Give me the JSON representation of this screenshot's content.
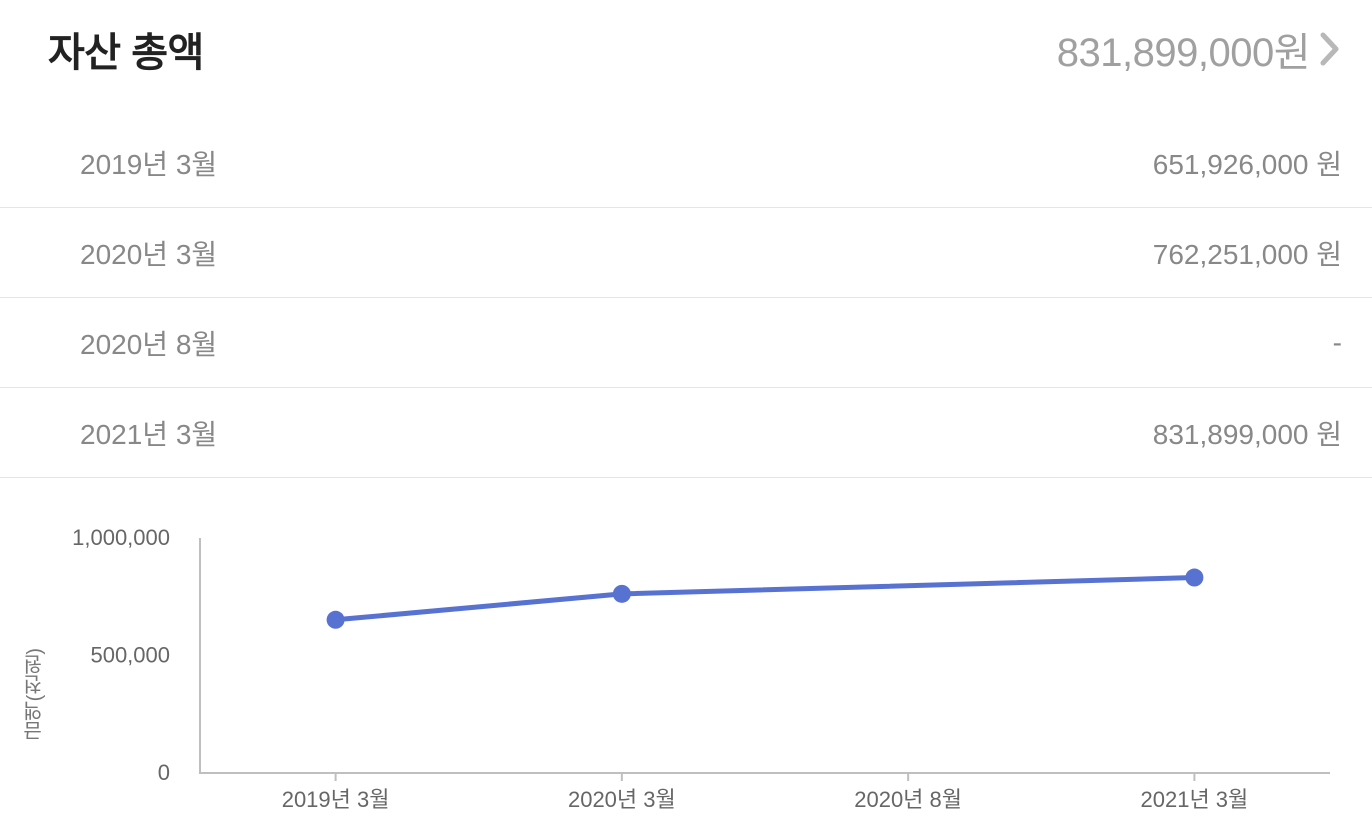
{
  "header": {
    "title": "자산 총액",
    "total_amount": "831,899,000원"
  },
  "table": {
    "rows": [
      {
        "label": "2019년 3월",
        "value": "651,926,000 원"
      },
      {
        "label": "2020년 3월",
        "value": "762,251,000 원"
      },
      {
        "label": "2020년 8월",
        "value": "-"
      },
      {
        "label": "2021년 3월",
        "value": "831,899,000 원"
      }
    ]
  },
  "chart": {
    "type": "line",
    "y_axis_title": "금액(천원)",
    "ylim": [
      0,
      1000000
    ],
    "yticks": [
      {
        "value": 0,
        "label": "0"
      },
      {
        "value": 500000,
        "label": "500,000"
      },
      {
        "value": 1000000,
        "label": "1,000,000"
      }
    ],
    "categories": [
      "2019년 3월",
      "2020년 3월",
      "2020년 8월",
      "2021년 3월"
    ],
    "series": {
      "values": [
        651926,
        762251,
        null,
        831899
      ],
      "line_color": "#5872d1",
      "line_width": 5,
      "marker_color": "#5872d1",
      "marker_radius": 9
    },
    "axis_color": "#bfbfbf",
    "axis_width": 2,
    "tick_font_size": 22,
    "tick_color": "#666666",
    "background_color": "#ffffff"
  }
}
